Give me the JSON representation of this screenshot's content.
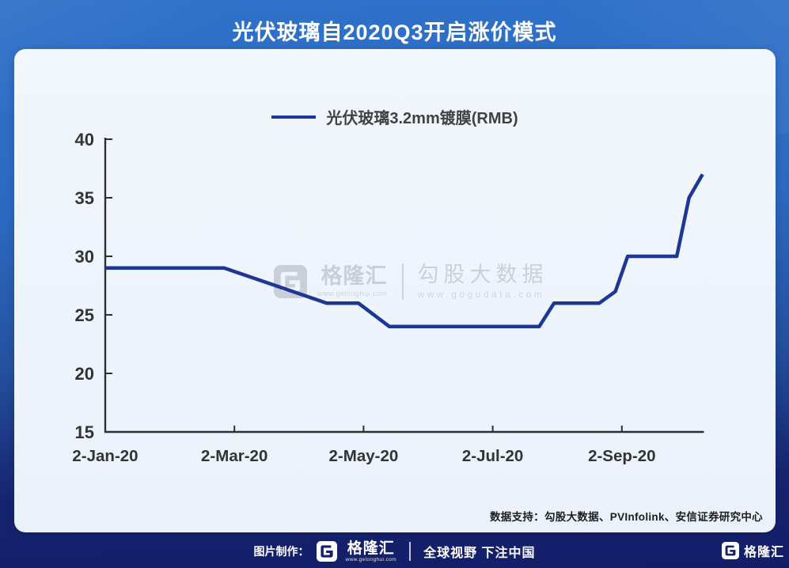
{
  "header": {
    "title": "光伏玻璃自2020Q3开启涨价模式"
  },
  "legend": {
    "label": "光伏玻璃3.2mm镀膜(RMB)"
  },
  "chart_data": {
    "type": "line",
    "title": "光伏玻璃自2020Q3开启涨价模式",
    "legend_position": "top",
    "grid": false,
    "ylabel": "",
    "xlabel": "",
    "ylim": [
      15,
      40
    ],
    "y_ticks": [
      40,
      35,
      30,
      25,
      20,
      15
    ],
    "x_axis_end_months": 9.27,
    "x_ticks": [
      {
        "label": "2-Jan-20",
        "t": 0
      },
      {
        "label": "2-Mar-20",
        "t": 2
      },
      {
        "label": "2-May-20",
        "t": 4
      },
      {
        "label": "2-Jul-20",
        "t": 6
      },
      {
        "label": "2-Sep-20",
        "t": 8
      }
    ],
    "series": [
      {
        "name": "光伏玻璃3.2mm镀膜(RMB)",
        "color": "#1c3796",
        "points": [
          {
            "date": "2-Jan-20",
            "t": 0,
            "value": 29
          },
          {
            "date": "27-Feb-20",
            "t": 1.84,
            "value": 29
          },
          {
            "date": "15-Apr-20",
            "t": 3.43,
            "value": 26
          },
          {
            "date": "30-Apr-20",
            "t": 3.92,
            "value": 26
          },
          {
            "date": "14-May-20",
            "t": 4.4,
            "value": 24
          },
          {
            "date": "23-Jul-20",
            "t": 6.72,
            "value": 24
          },
          {
            "date": "31-Jul-20",
            "t": 6.95,
            "value": 26
          },
          {
            "date": "21-Aug-20",
            "t": 7.65,
            "value": 26
          },
          {
            "date": "28-Aug-20",
            "t": 7.9,
            "value": 27
          },
          {
            "date": "4-Sep-20",
            "t": 8.09,
            "value": 30
          },
          {
            "date": "27-Sep-20",
            "t": 8.85,
            "value": 30
          },
          {
            "date": "3-Oct-20",
            "t": 9.04,
            "value": 35
          },
          {
            "date": "9-Oct-20",
            "t": 9.25,
            "value": 37
          }
        ]
      }
    ]
  },
  "watermark": {
    "brand": "格隆汇",
    "brand_url": "www.gelonghui.com",
    "data_brand": "勾股大数据",
    "data_url": "www.gogudata.com"
  },
  "note": {
    "data_support": "数据支持：勾股大数据、PVInfolink、安信证券研究中心"
  },
  "footer": {
    "made_by_label": "图片制作：",
    "brand": "格隆汇",
    "brand_url": "www.gelonghui.com",
    "slogan": "全球视野 下注中国",
    "right_brand": "格隆汇"
  },
  "colors": {
    "background_top": "#2f71c9",
    "background_bottom": "#141e68",
    "card_bg": "#eef4fb",
    "line": "#1c3796",
    "axis": "#2f2f2f",
    "axis_label": "#333333",
    "title_text": "#ffffff",
    "watermark": "#c9cedb",
    "footer_navy": "#16206b"
  }
}
